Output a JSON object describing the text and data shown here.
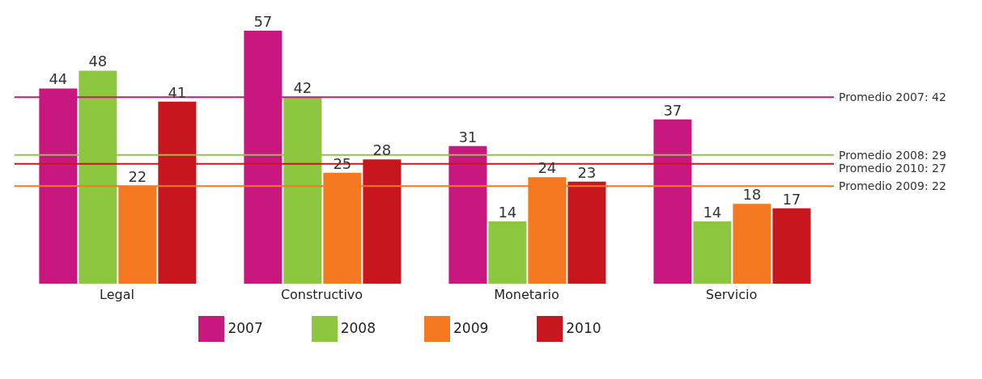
{
  "chart_data": {
    "type": "bar",
    "categories": [
      "Legal",
      "Constructivo",
      "Monetario",
      "Servicio"
    ],
    "series": [
      {
        "name": "2007",
        "color": "#c8177f",
        "values": [
          44,
          57,
          31,
          37
        ]
      },
      {
        "name": "2008",
        "color": "#8dc63f",
        "values": [
          48,
          42,
          14,
          14
        ]
      },
      {
        "name": "2009",
        "color": "#f47920",
        "values": [
          22,
          25,
          24,
          18
        ]
      },
      {
        "name": "2010",
        "color": "#c8161e",
        "values": [
          41,
          28,
          23,
          17
        ]
      }
    ],
    "data_labels": true,
    "ref_lines": [
      {
        "axis": "y",
        "value": 42,
        "label": "Promedio 2007: 42",
        "color": "#c8177f"
      },
      {
        "axis": "y",
        "value": 29,
        "label": "Promedio 2008: 29",
        "color": "#8dc63f"
      },
      {
        "axis": "y",
        "value": 27,
        "label": "Promedio 2010: 27",
        "color": "#c8161e"
      },
      {
        "axis": "y",
        "value": 22,
        "label": "Promedio 2009: 22",
        "color": "#f47920"
      }
    ],
    "grid": false,
    "legend": "bottom"
  }
}
